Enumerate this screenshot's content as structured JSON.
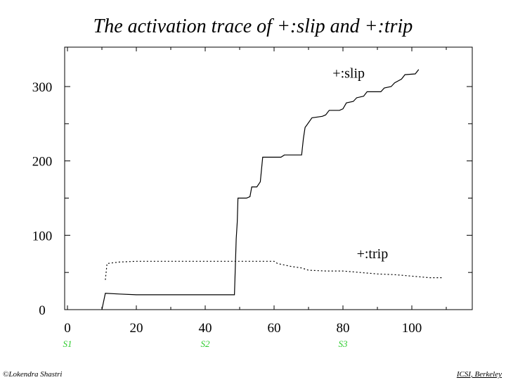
{
  "title": "The activation trace of +:slip and +:trip",
  "footer": {
    "left": "©Lokendra Shastri",
    "right": "ICSI, Berkeley"
  },
  "colors": {
    "line": "#000000",
    "marker_label": "#2ecc2e"
  },
  "chart_data": {
    "type": "line",
    "title": "The activation trace of +:slip and +:trip",
    "xlabel": "",
    "ylabel": "",
    "xlim": [
      0,
      115
    ],
    "ylim": [
      0,
      345
    ],
    "x_ticks": [
      0,
      20,
      40,
      60,
      80,
      100
    ],
    "y_ticks": [
      0,
      100,
      200,
      300
    ],
    "grid": false,
    "series": [
      {
        "name": "+:slip",
        "style": "solid",
        "points": [
          [
            10,
            0
          ],
          [
            11,
            22
          ],
          [
            15,
            21
          ],
          [
            20,
            20
          ],
          [
            30,
            20
          ],
          [
            40,
            20
          ],
          [
            48.5,
            20
          ],
          [
            49,
            95
          ],
          [
            49.3,
            118
          ],
          [
            49.5,
            150
          ],
          [
            52,
            150
          ],
          [
            53,
            152
          ],
          [
            53.5,
            165
          ],
          [
            55,
            165
          ],
          [
            56,
            172
          ],
          [
            56.7,
            205
          ],
          [
            60,
            205
          ],
          [
            62,
            205
          ],
          [
            63,
            208
          ],
          [
            68,
            208
          ],
          [
            68.5,
            230
          ],
          [
            69,
            245
          ],
          [
            69.5,
            248
          ],
          [
            71,
            258
          ],
          [
            74,
            260
          ],
          [
            75,
            262
          ],
          [
            76,
            268
          ],
          [
            79,
            268
          ],
          [
            80,
            270
          ],
          [
            81,
            278
          ],
          [
            83,
            280
          ],
          [
            84,
            285
          ],
          [
            86,
            287
          ],
          [
            87,
            293
          ],
          [
            91,
            293
          ],
          [
            92,
            298
          ],
          [
            94,
            300
          ],
          [
            95,
            305
          ],
          [
            97,
            310
          ],
          [
            98,
            316
          ],
          [
            101,
            317
          ],
          [
            102,
            323
          ]
        ]
      },
      {
        "name": "+:trip",
        "style": "dotted",
        "points": [
          [
            11,
            40
          ],
          [
            11.5,
            62
          ],
          [
            15,
            64
          ],
          [
            20,
            65
          ],
          [
            30,
            65
          ],
          [
            40,
            65
          ],
          [
            50,
            65
          ],
          [
            55,
            65
          ],
          [
            60,
            65
          ],
          [
            61,
            62
          ],
          [
            65,
            58
          ],
          [
            68,
            56
          ],
          [
            70,
            53
          ],
          [
            75,
            52
          ],
          [
            80,
            52
          ],
          [
            85,
            50
          ],
          [
            90,
            48
          ],
          [
            95,
            47
          ],
          [
            100,
            45
          ],
          [
            105,
            43
          ],
          [
            109,
            43
          ]
        ]
      }
    ],
    "annotations": [
      {
        "text": "+:slip",
        "x": 77,
        "y": 312
      },
      {
        "text": "+:trip",
        "x": 84,
        "y": 69
      }
    ],
    "x_markers": [
      {
        "label": "S1",
        "x": 0
      },
      {
        "label": "S2",
        "x": 40
      },
      {
        "label": "S3",
        "x": 80
      }
    ]
  }
}
